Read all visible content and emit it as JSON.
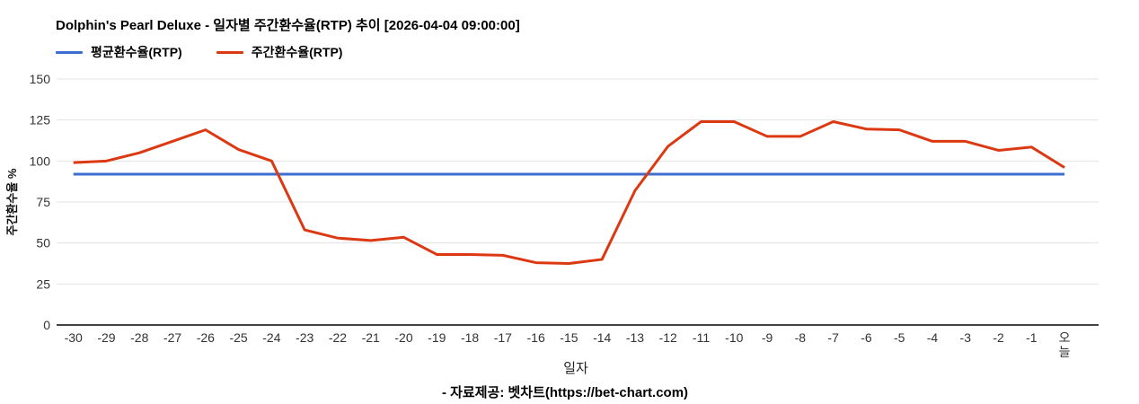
{
  "chart_data": {
    "type": "line",
    "title": "Dolphin's Pearl Deluxe - 일자별 주간환수율(RTP) 추이 [2026-04-04 09:00:00]",
    "xlabel": "일자",
    "ylabel": "주간환수율 %",
    "ylim": [
      0,
      150
    ],
    "yticks": [
      0,
      25,
      50,
      75,
      100,
      125,
      150
    ],
    "grid": true,
    "legend_position": "top-left",
    "categories": [
      "-30",
      "-29",
      "-28",
      "-27",
      "-26",
      "-25",
      "-24",
      "-23",
      "-22",
      "-21",
      "-20",
      "-19",
      "-18",
      "-17",
      "-16",
      "-15",
      "-14",
      "-13",
      "-12",
      "-11",
      "-10",
      "-9",
      "-8",
      "-7",
      "-6",
      "-5",
      "-4",
      "-3",
      "-2",
      "-1",
      "오늘"
    ],
    "series": [
      {
        "key": "average-rtp",
        "name": "평균환수율(RTP)",
        "color": "#3d6ecf",
        "values": [
          92,
          92,
          92,
          92,
          92,
          92,
          92,
          92,
          92,
          92,
          92,
          92,
          92,
          92,
          92,
          92,
          92,
          92,
          92,
          92,
          92,
          92,
          92,
          92,
          92,
          92,
          92,
          92,
          92,
          92,
          92
        ]
      },
      {
        "key": "weekly-rtp",
        "name": "주간환수율(RTP)",
        "color": "#dc3912",
        "values": [
          99,
          100,
          105,
          112,
          119,
          107,
          100,
          58,
          53,
          51.5,
          53.5,
          43,
          43,
          42.5,
          38,
          37.5,
          40,
          82,
          109,
          124,
          124,
          115,
          115,
          124,
          119.5,
          119,
          112,
          112,
          106.5,
          108.5,
          96
        ]
      }
    ]
  },
  "footer": {
    "credit": "- 자료제공: 벳차트(https://bet-chart.com)"
  }
}
